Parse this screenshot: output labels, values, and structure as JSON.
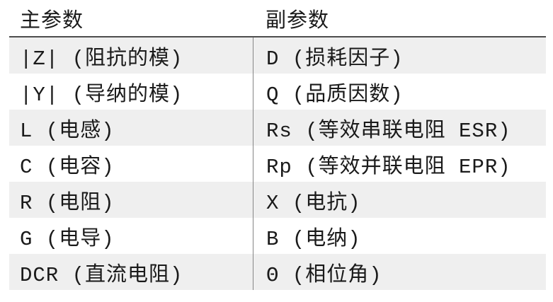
{
  "table": {
    "title": "measurement-parameters",
    "accent_colors": {
      "stripe_background": "#efefef",
      "header_rule": "#4d4d4d",
      "column_divider": "#858585",
      "text": "#1a1a1a"
    },
    "columns": {
      "main_header": "主参数",
      "secondary_header": "副参数"
    },
    "rows": [
      {
        "main": "|Z| (阻抗的模)",
        "secondary": "D (损耗因子)"
      },
      {
        "main": "|Y| (导纳的模)",
        "secondary": "Q (品质因数)"
      },
      {
        "main": "L (电感)",
        "secondary": "Rs (等效串联电阻 ESR)"
      },
      {
        "main": "C (电容)",
        "secondary": "Rp (等效并联电阻 EPR)"
      },
      {
        "main": "R (电阻)",
        "secondary": "X (电抗)"
      },
      {
        "main": "G (电导)",
        "secondary": "B (电纳)"
      },
      {
        "main": "DCR (直流电阻)",
        "secondary": "Θ (相位角)"
      }
    ]
  }
}
